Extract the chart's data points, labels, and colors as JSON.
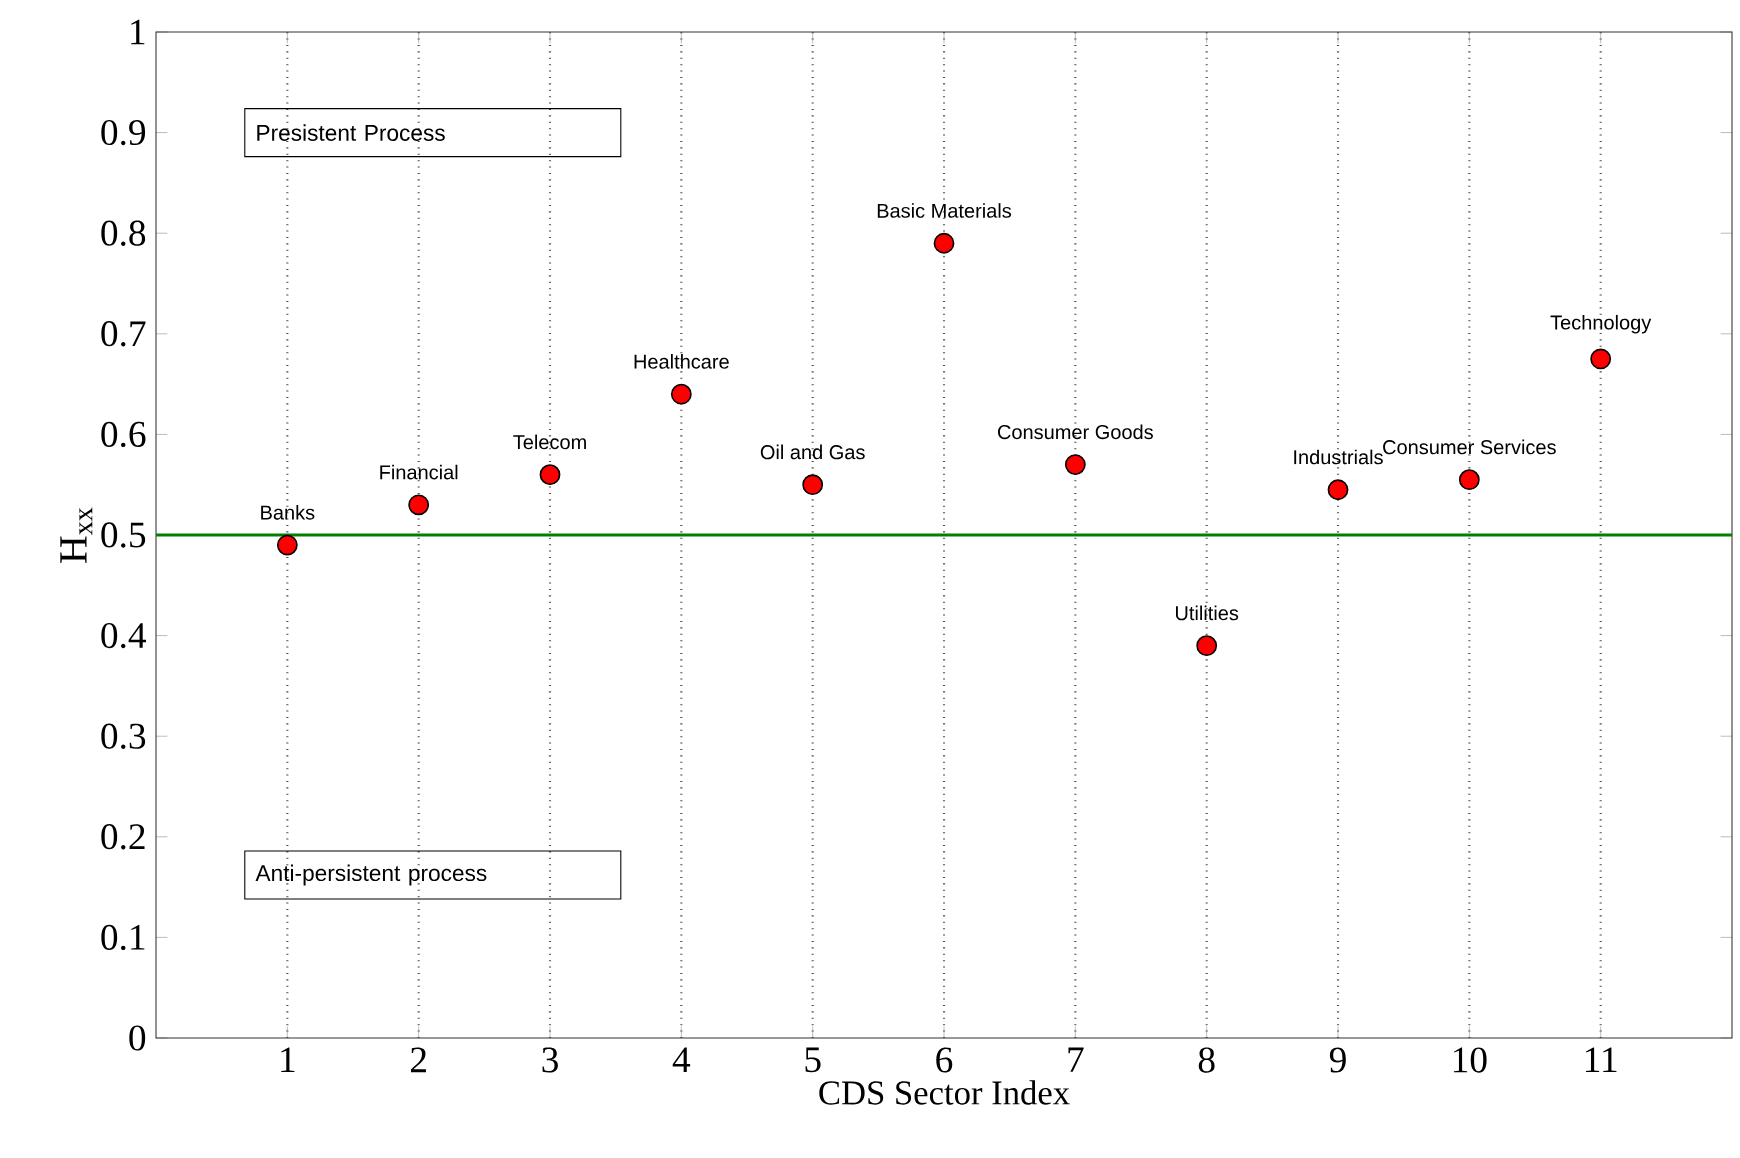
{
  "chart_data": {
    "type": "scatter",
    "xlabel": "CDS Sector Index",
    "ylabel": "H$_{xx}$",
    "x": [
      1,
      2,
      3,
      4,
      5,
      6,
      7,
      8,
      9,
      10,
      11
    ],
    "series": [
      {
        "color": "#ff0000",
        "values": [
          0.49,
          0.53,
          0.56,
          0.64,
          0.55,
          0.79,
          0.57,
          0.39,
          0.545,
          0.555,
          0.675
        ]
      }
    ],
    "marker": "circle",
    "grid": "x",
    "xlim": [
      0,
      12
    ],
    "xticks": [
      1,
      2,
      3,
      4,
      5,
      6,
      7,
      8,
      9,
      10,
      11
    ],
    "ylim": [
      0,
      1
    ],
    "yticks": [
      0,
      0.1,
      0.2,
      0.3,
      0.4,
      0.5,
      0.6,
      0.7,
      0.8,
      0.9,
      1
    ],
    "ref_lines": [
      {
        "axis": "y",
        "value": 0.5,
        "color": "#008000"
      }
    ],
    "annotations": [
      "Presistent Process",
      "Anti-persistent process",
      {
        "text": "Banks",
        "x": 1,
        "y": 0.49
      },
      {
        "text": "Financial",
        "x": 2,
        "y": 0.53
      },
      {
        "text": "Telecom",
        "x": 3,
        "y": 0.56
      },
      {
        "text": "Healthcare",
        "x": 4,
        "y": 0.64
      },
      {
        "text": "Oil and Gas",
        "x": 5,
        "y": 0.55
      },
      {
        "text": "Basic Materials",
        "x": 6,
        "y": 0.79
      },
      {
        "text": "Consumer Goods",
        "x": 7,
        "y": 0.57
      },
      {
        "text": "Utilities",
        "x": 8,
        "y": 0.39
      },
      {
        "text": "Industrials",
        "x": 9,
        "y": 0.545
      },
      {
        "text": "Consumer Services",
        "x": 10,
        "y": 0.555
      },
      {
        "text": "Technology",
        "x": 11,
        "y": 0.675
      }
    ]
  }
}
